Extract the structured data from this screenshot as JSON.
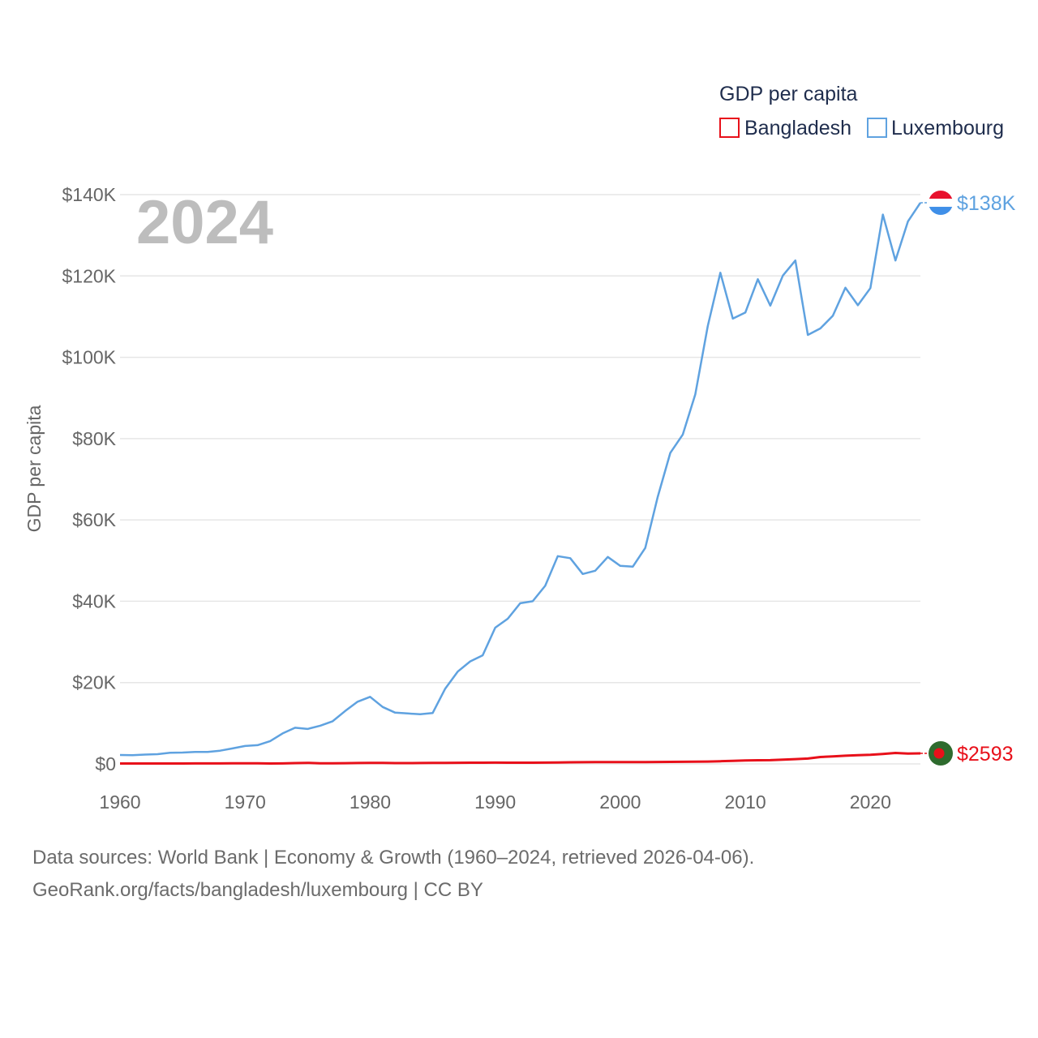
{
  "chart_data": {
    "type": "line",
    "title": "GDP per capita",
    "ylabel": "GDP per capita",
    "xlabel": "",
    "current_year": "2024",
    "xlim": [
      1960,
      2024
    ],
    "ylim": [
      0,
      140000
    ],
    "x_ticks": [
      1960,
      1970,
      1980,
      1990,
      2000,
      2010,
      2020
    ],
    "y_ticks": [
      {
        "value": 0,
        "label": "$0"
      },
      {
        "value": 20000,
        "label": "$20K"
      },
      {
        "value": 40000,
        "label": "$40K"
      },
      {
        "value": 60000,
        "label": "$60K"
      },
      {
        "value": 80000,
        "label": "$80K"
      },
      {
        "value": 100000,
        "label": "$100K"
      },
      {
        "value": 120000,
        "label": "$120K"
      },
      {
        "value": 140000,
        "label": "$140K"
      }
    ],
    "grid": true,
    "legend_position": "top-right",
    "series": [
      {
        "name": "Bangladesh",
        "color": "#e8101a",
        "end_label": "$2593",
        "flag_icon": "bangladesh-flag-icon",
        "x": [
          1960,
          1961,
          1962,
          1963,
          1964,
          1965,
          1966,
          1967,
          1968,
          1969,
          1970,
          1971,
          1972,
          1973,
          1974,
          1975,
          1976,
          1977,
          1978,
          1979,
          1980,
          1981,
          1982,
          1983,
          1984,
          1985,
          1986,
          1987,
          1988,
          1989,
          1990,
          1991,
          1992,
          1993,
          1994,
          1995,
          1996,
          1997,
          1998,
          1999,
          2000,
          2001,
          2002,
          2003,
          2004,
          2005,
          2006,
          2007,
          2008,
          2009,
          2010,
          2011,
          2012,
          2013,
          2014,
          2015,
          2016,
          2017,
          2018,
          2019,
          2020,
          2021,
          2022,
          2023,
          2024
        ],
        "values": [
          90,
          95,
          98,
          100,
          105,
          108,
          110,
          115,
          125,
          135,
          140,
          130,
          95,
          115,
          190,
          260,
          150,
          140,
          180,
          210,
          230,
          230,
          200,
          190,
          210,
          240,
          250,
          270,
          290,
          300,
          310,
          300,
          300,
          300,
          310,
          340,
          400,
          420,
          430,
          440,
          450,
          440,
          440,
          470,
          500,
          510,
          530,
          580,
          660,
          730,
          830,
          900,
          920,
          1030,
          1170,
          1310,
          1700,
          1850,
          2010,
          2150,
          2250,
          2460,
          2700,
          2550,
          2593
        ]
      },
      {
        "name": "Luxembourg",
        "color": "#5fa2e0",
        "end_label": "$138K",
        "flag_icon": "luxembourg-flag-icon",
        "x": [
          1960,
          1961,
          1962,
          1963,
          1964,
          1965,
          1966,
          1967,
          1968,
          1969,
          1970,
          1971,
          1972,
          1973,
          1974,
          1975,
          1976,
          1977,
          1978,
          1979,
          1980,
          1981,
          1982,
          1983,
          1984,
          1985,
          1986,
          1987,
          1988,
          1989,
          1990,
          1991,
          1992,
          1993,
          1994,
          1995,
          1996,
          1997,
          1998,
          1999,
          2000,
          2001,
          2002,
          2003,
          2004,
          2005,
          2006,
          2007,
          2008,
          2009,
          2010,
          2011,
          2012,
          2013,
          2014,
          2015,
          2016,
          2017,
          2018,
          2019,
          2020,
          2021,
          2022,
          2023,
          2024
        ],
        "values": [
          2200,
          2150,
          2300,
          2400,
          2750,
          2800,
          2950,
          2950,
          3250,
          3800,
          4400,
          4600,
          5600,
          7500,
          8900,
          8600,
          9400,
          10500,
          13000,
          15300,
          16500,
          14000,
          12600,
          12400,
          12200,
          12500,
          18500,
          22700,
          25200,
          26700,
          33500,
          35700,
          39500,
          40000,
          43800,
          51100,
          50600,
          46700,
          47500,
          50900,
          48700,
          48500,
          53100,
          65700,
          76500,
          81000,
          90900,
          107700,
          120800,
          109500,
          111000,
          119200,
          112700,
          120100,
          123800,
          105500,
          107100,
          110200,
          117100,
          112800,
          117000,
          135100,
          123800,
          133400,
          138000
        ]
      }
    ]
  },
  "legend": {
    "title": "GDP per capita",
    "items": [
      "Bangladesh",
      "Luxembourg"
    ]
  },
  "footer": {
    "line1": "Data sources: World Bank | Economy & Growth (1960–2024, retrieved 2026-04-06).",
    "line2": "GeoRank.org/facts/bangladesh/luxembourg | CC BY"
  }
}
